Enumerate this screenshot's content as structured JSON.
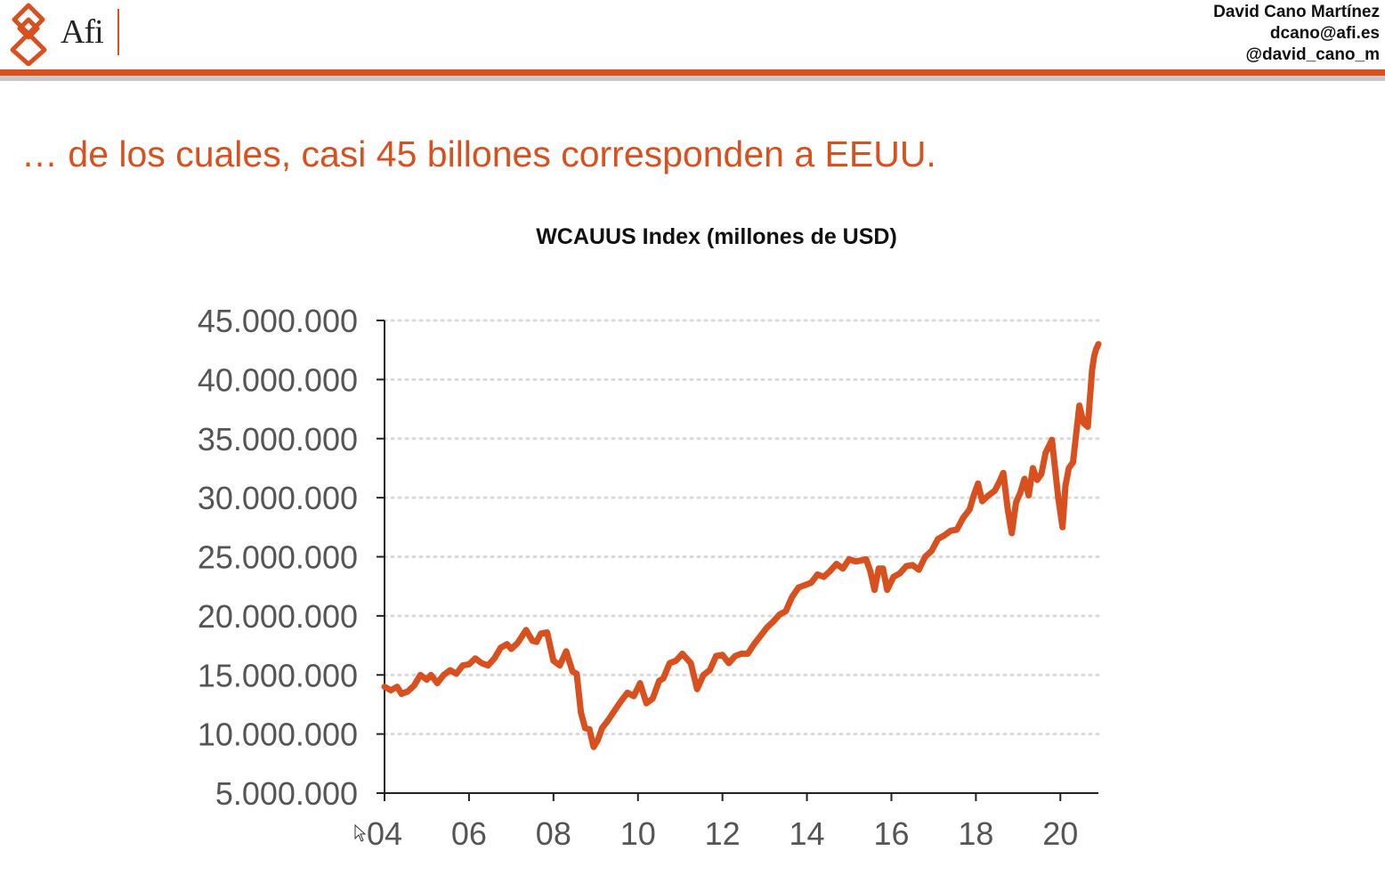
{
  "header": {
    "logo_text": "Afi",
    "author_name": "David Cano Martínez",
    "author_email": "dcano@afi.es",
    "author_handle": "@david_cano_m",
    "accent_color": "#d9501f"
  },
  "slide": {
    "title": "… de los cuales, casi 45 billones corresponden a EEUU."
  },
  "chart_data": {
    "type": "line",
    "title": "WCAUUS Index (millones de USD)",
    "xlabel": "",
    "ylabel": "",
    "xlim": [
      2004.0,
      2020.9
    ],
    "ylim": [
      5000000,
      45000000
    ],
    "grid": "horizontal dotted",
    "line_color": "#d9501f",
    "y_ticks": [
      5000000,
      10000000,
      15000000,
      20000000,
      25000000,
      30000000,
      35000000,
      40000000,
      45000000
    ],
    "y_tick_labels": [
      "5.000.000",
      "10.000.000",
      "15.000.000",
      "20.000.000",
      "25.000.000",
      "30.000.000",
      "35.000.000",
      "40.000.000",
      "45.000.000"
    ],
    "x_ticks": [
      2004,
      2006,
      2008,
      2010,
      2012,
      2014,
      2016,
      2018,
      2020
    ],
    "x_tick_labels": [
      "04",
      "06",
      "08",
      "10",
      "12",
      "14",
      "16",
      "18",
      "20"
    ],
    "series": [
      {
        "x": [
          2004.0,
          2004.15,
          2004.3,
          2004.4,
          2004.55,
          2004.7,
          2004.85,
          2005.0,
          2005.1,
          2005.25,
          2005.4,
          2005.55,
          2005.7,
          2005.85,
          2006.0,
          2006.15,
          2006.3,
          2006.45,
          2006.6,
          2006.75,
          2006.9,
          2007.0,
          2007.15,
          2007.35,
          2007.5,
          2007.6,
          2007.7,
          2007.85,
          2008.0,
          2008.15,
          2008.3,
          2008.45,
          2008.55,
          2008.65,
          2008.75,
          2008.85,
          2008.95,
          2009.05,
          2009.15,
          2009.3,
          2009.45,
          2009.6,
          2009.75,
          2009.9,
          2010.05,
          2010.2,
          2010.35,
          2010.5,
          2010.6,
          2010.75,
          2010.9,
          2011.05,
          2011.25,
          2011.4,
          2011.55,
          2011.7,
          2011.85,
          2012.0,
          2012.15,
          2012.3,
          2012.45,
          2012.6,
          2012.75,
          2012.9,
          2013.05,
          2013.2,
          2013.35,
          2013.5,
          2013.65,
          2013.8,
          2013.95,
          2014.1,
          2014.25,
          2014.4,
          2014.55,
          2014.7,
          2014.85,
          2015.0,
          2015.15,
          2015.3,
          2015.4,
          2015.5,
          2015.6,
          2015.7,
          2015.8,
          2015.9,
          2016.05,
          2016.2,
          2016.35,
          2016.5,
          2016.65,
          2016.8,
          2016.95,
          2017.1,
          2017.25,
          2017.4,
          2017.55,
          2017.7,
          2017.85,
          2017.95,
          2018.05,
          2018.15,
          2018.3,
          2018.45,
          2018.55,
          2018.65,
          2018.75,
          2018.85,
          2018.95,
          2019.05,
          2019.15,
          2019.25,
          2019.35,
          2019.45,
          2019.55,
          2019.65,
          2019.8,
          2019.95,
          2020.05,
          2020.12,
          2020.2,
          2020.3,
          2020.45,
          2020.55,
          2020.65,
          2020.75,
          2020.8,
          2020.85,
          2020.9
        ],
        "y": [
          14000000,
          13700000,
          14000000,
          13400000,
          13600000,
          14100000,
          15000000,
          14600000,
          15000000,
          14300000,
          15000000,
          15400000,
          15100000,
          15800000,
          15900000,
          16400000,
          16000000,
          15800000,
          16400000,
          17300000,
          17600000,
          17200000,
          17700000,
          18800000,
          17900000,
          17800000,
          18500000,
          18600000,
          16200000,
          15800000,
          17000000,
          15300000,
          15100000,
          11800000,
          10500000,
          10400000,
          8900000,
          9500000,
          10500000,
          11200000,
          12000000,
          12800000,
          13500000,
          13200000,
          14300000,
          12600000,
          13000000,
          14500000,
          14700000,
          16000000,
          16200000,
          16800000,
          16000000,
          13800000,
          15000000,
          15400000,
          16600000,
          16700000,
          16000000,
          16600000,
          16800000,
          16800000,
          17600000,
          18300000,
          19000000,
          19500000,
          20100000,
          20400000,
          21600000,
          22400000,
          22600000,
          22800000,
          23500000,
          23300000,
          23800000,
          24400000,
          24000000,
          24800000,
          24600000,
          24700000,
          24800000,
          23800000,
          22200000,
          24000000,
          24000000,
          22200000,
          23300000,
          23600000,
          24200000,
          24300000,
          23900000,
          25000000,
          25500000,
          26500000,
          26800000,
          27200000,
          27300000,
          28300000,
          29000000,
          30200000,
          31200000,
          29700000,
          30200000,
          30600000,
          31300000,
          32100000,
          29100000,
          27000000,
          29600000,
          30400000,
          31600000,
          30200000,
          32500000,
          31500000,
          32000000,
          33800000,
          34900000,
          30000000,
          27500000,
          31000000,
          32500000,
          33000000,
          37800000,
          36300000,
          36000000,
          40800000,
          42000000,
          42600000,
          43000000
        ]
      }
    ]
  }
}
